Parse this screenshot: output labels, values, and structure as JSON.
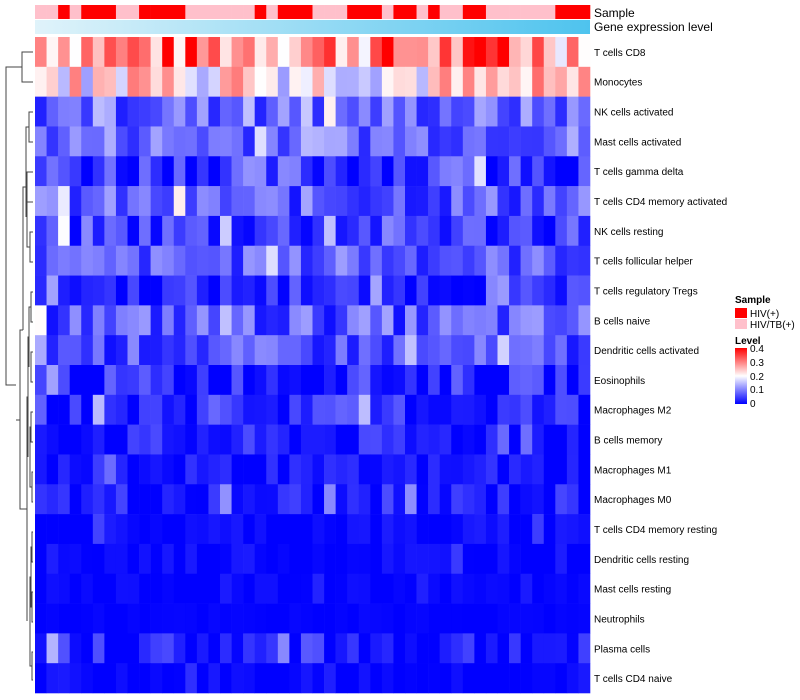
{
  "chart_data": {
    "type": "heatmap",
    "title": "",
    "annotation_labels": {
      "sample": "Sample",
      "gene_expression": "Gene expression level"
    },
    "rows": [
      "T cells CD8",
      "Monocytes",
      "NK cells activated",
      "Mast cells activated",
      "T cells gamma delta",
      "T cells CD4 memory activated",
      "NK cells resting",
      "T cells follicular helper",
      "T cells regulatory  Tregs",
      "B cells naive",
      "Dendritic cells activated",
      "Eosinophils",
      "Macrophages M2",
      "B cells memory",
      "Macrophages M1",
      "Macrophages M0",
      "T cells CD4 memory resting",
      "Dendritic cells resting",
      "Mast cells resting",
      "Neutrophils",
      "Plasma cells",
      "T cells CD4 naive"
    ],
    "n_samples": 48,
    "sample_groups": [
      2,
      2,
      1,
      2,
      1,
      1,
      1,
      2,
      2,
      1,
      1,
      1,
      1,
      2,
      2,
      2,
      2,
      2,
      2,
      1,
      2,
      1,
      1,
      1,
      2,
      2,
      2,
      1,
      1,
      1,
      2,
      1,
      1,
      2,
      1,
      2,
      2,
      1,
      1,
      2,
      2,
      2,
      2,
      2,
      2,
      1,
      1,
      1
    ],
    "row_mean_levels": [
      0.3,
      0.22,
      0.08,
      0.09,
      0.05,
      0.07,
      0.05,
      0.07,
      0.03,
      0.07,
      0.06,
      0.03,
      0.03,
      0.02,
      0.01,
      0.02,
      0.005,
      0.005,
      0.003,
      0.001,
      0.02,
      0.001
    ],
    "row_variability": [
      0.12,
      0.1,
      0.06,
      0.06,
      0.07,
      0.06,
      0.06,
      0.05,
      0.04,
      0.06,
      0.05,
      0.05,
      0.05,
      0.04,
      0.03,
      0.04,
      0.02,
      0.02,
      0.01,
      0.005,
      0.05,
      0.02
    ],
    "seed": 7,
    "legend": {
      "sample_title": "Sample",
      "sample_entries": [
        {
          "label": "HIV(+)",
          "color": "#ff0000"
        },
        {
          "label": "HIV/TB(+)",
          "color": "#ffc0cb"
        }
      ],
      "level_title": "Level",
      "level_ticks": [
        "0.4",
        "0.3",
        "0.2",
        "0.1",
        "0"
      ],
      "level_range": [
        0,
        0.4
      ]
    },
    "colors": {
      "low": "#0000ff",
      "mid": "#ffffff",
      "high": "#ff0000",
      "gene_expr_start": "#e0f3fa",
      "gene_expr_end": "#4ec3ee"
    },
    "dendrogram": "rows clustered (hierarchical)"
  }
}
